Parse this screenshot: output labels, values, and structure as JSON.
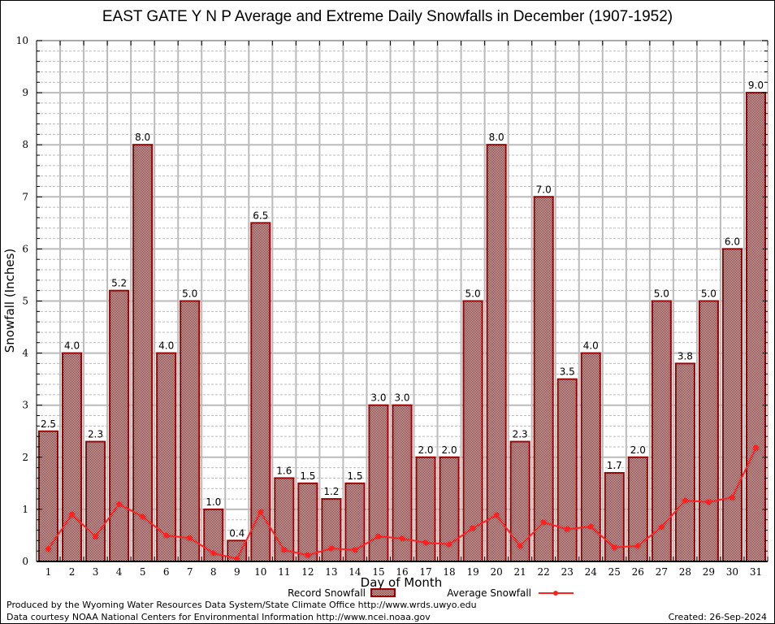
{
  "chart_data": {
    "type": "bar",
    "title": "EAST GATE Y N P Average and Extreme Daily Snowfalls in December (1907-1952)",
    "xlabel": "Day of Month",
    "ylabel": "Snowfall (Inches)",
    "ylim": [
      0,
      10
    ],
    "yticks": [
      0,
      1,
      2,
      3,
      4,
      5,
      6,
      7,
      8,
      9,
      10
    ],
    "grid": true,
    "legend_position": "bottom-center",
    "categories": [
      "1",
      "2",
      "3",
      "4",
      "5",
      "6",
      "7",
      "8",
      "9",
      "10",
      "11",
      "12",
      "13",
      "14",
      "15",
      "16",
      "17",
      "18",
      "19",
      "20",
      "21",
      "22",
      "23",
      "24",
      "25",
      "26",
      "27",
      "28",
      "29",
      "30",
      "31"
    ],
    "series": [
      {
        "name": "Record Snowfall",
        "type": "bar",
        "color": "#990000",
        "values": [
          2.5,
          4.0,
          2.3,
          5.2,
          8.0,
          4.0,
          5.0,
          1.0,
          0.4,
          6.5,
          1.6,
          1.5,
          1.2,
          1.5,
          3.0,
          3.0,
          2.0,
          2.0,
          5.0,
          8.0,
          2.3,
          7.0,
          3.5,
          4.0,
          1.7,
          2.0,
          5.0,
          3.8,
          5.0,
          6.0,
          9.0
        ],
        "labels": [
          "2.5",
          "4.0",
          "2.3",
          "5.2",
          "8.0",
          "4.0",
          "5.0",
          "1.0",
          "0.4",
          "6.5",
          "1.6",
          "1.5",
          "1.2",
          "1.5",
          "3.0",
          "3.0",
          "2.0",
          "2.0",
          "5.0",
          "8.0",
          "2.3",
          "7.0",
          "3.5",
          "4.0",
          "1.7",
          "2.0",
          "5.0",
          "3.8",
          "5.0",
          "6.0",
          "9.0"
        ]
      },
      {
        "name": "Average Snowfall",
        "type": "line",
        "color": "#ff2020",
        "values": [
          0.24,
          0.9,
          0.48,
          1.1,
          0.86,
          0.5,
          0.45,
          0.16,
          0.05,
          0.95,
          0.22,
          0.12,
          0.25,
          0.22,
          0.48,
          0.44,
          0.36,
          0.33,
          0.64,
          0.89,
          0.3,
          0.75,
          0.62,
          0.67,
          0.27,
          0.3,
          0.66,
          1.17,
          1.14,
          1.23,
          2.18
        ]
      }
    ]
  },
  "footer": {
    "produced_by": "Produced by the Wyoming Water Resources Data System/State Climate Office http://www.wrds.uwyo.edu",
    "courtesy": "Data courtesy NOAA National Centers for Environmental Information http://www.ncei.noaa.gov",
    "created": "Created: 26-Sep-2024"
  }
}
